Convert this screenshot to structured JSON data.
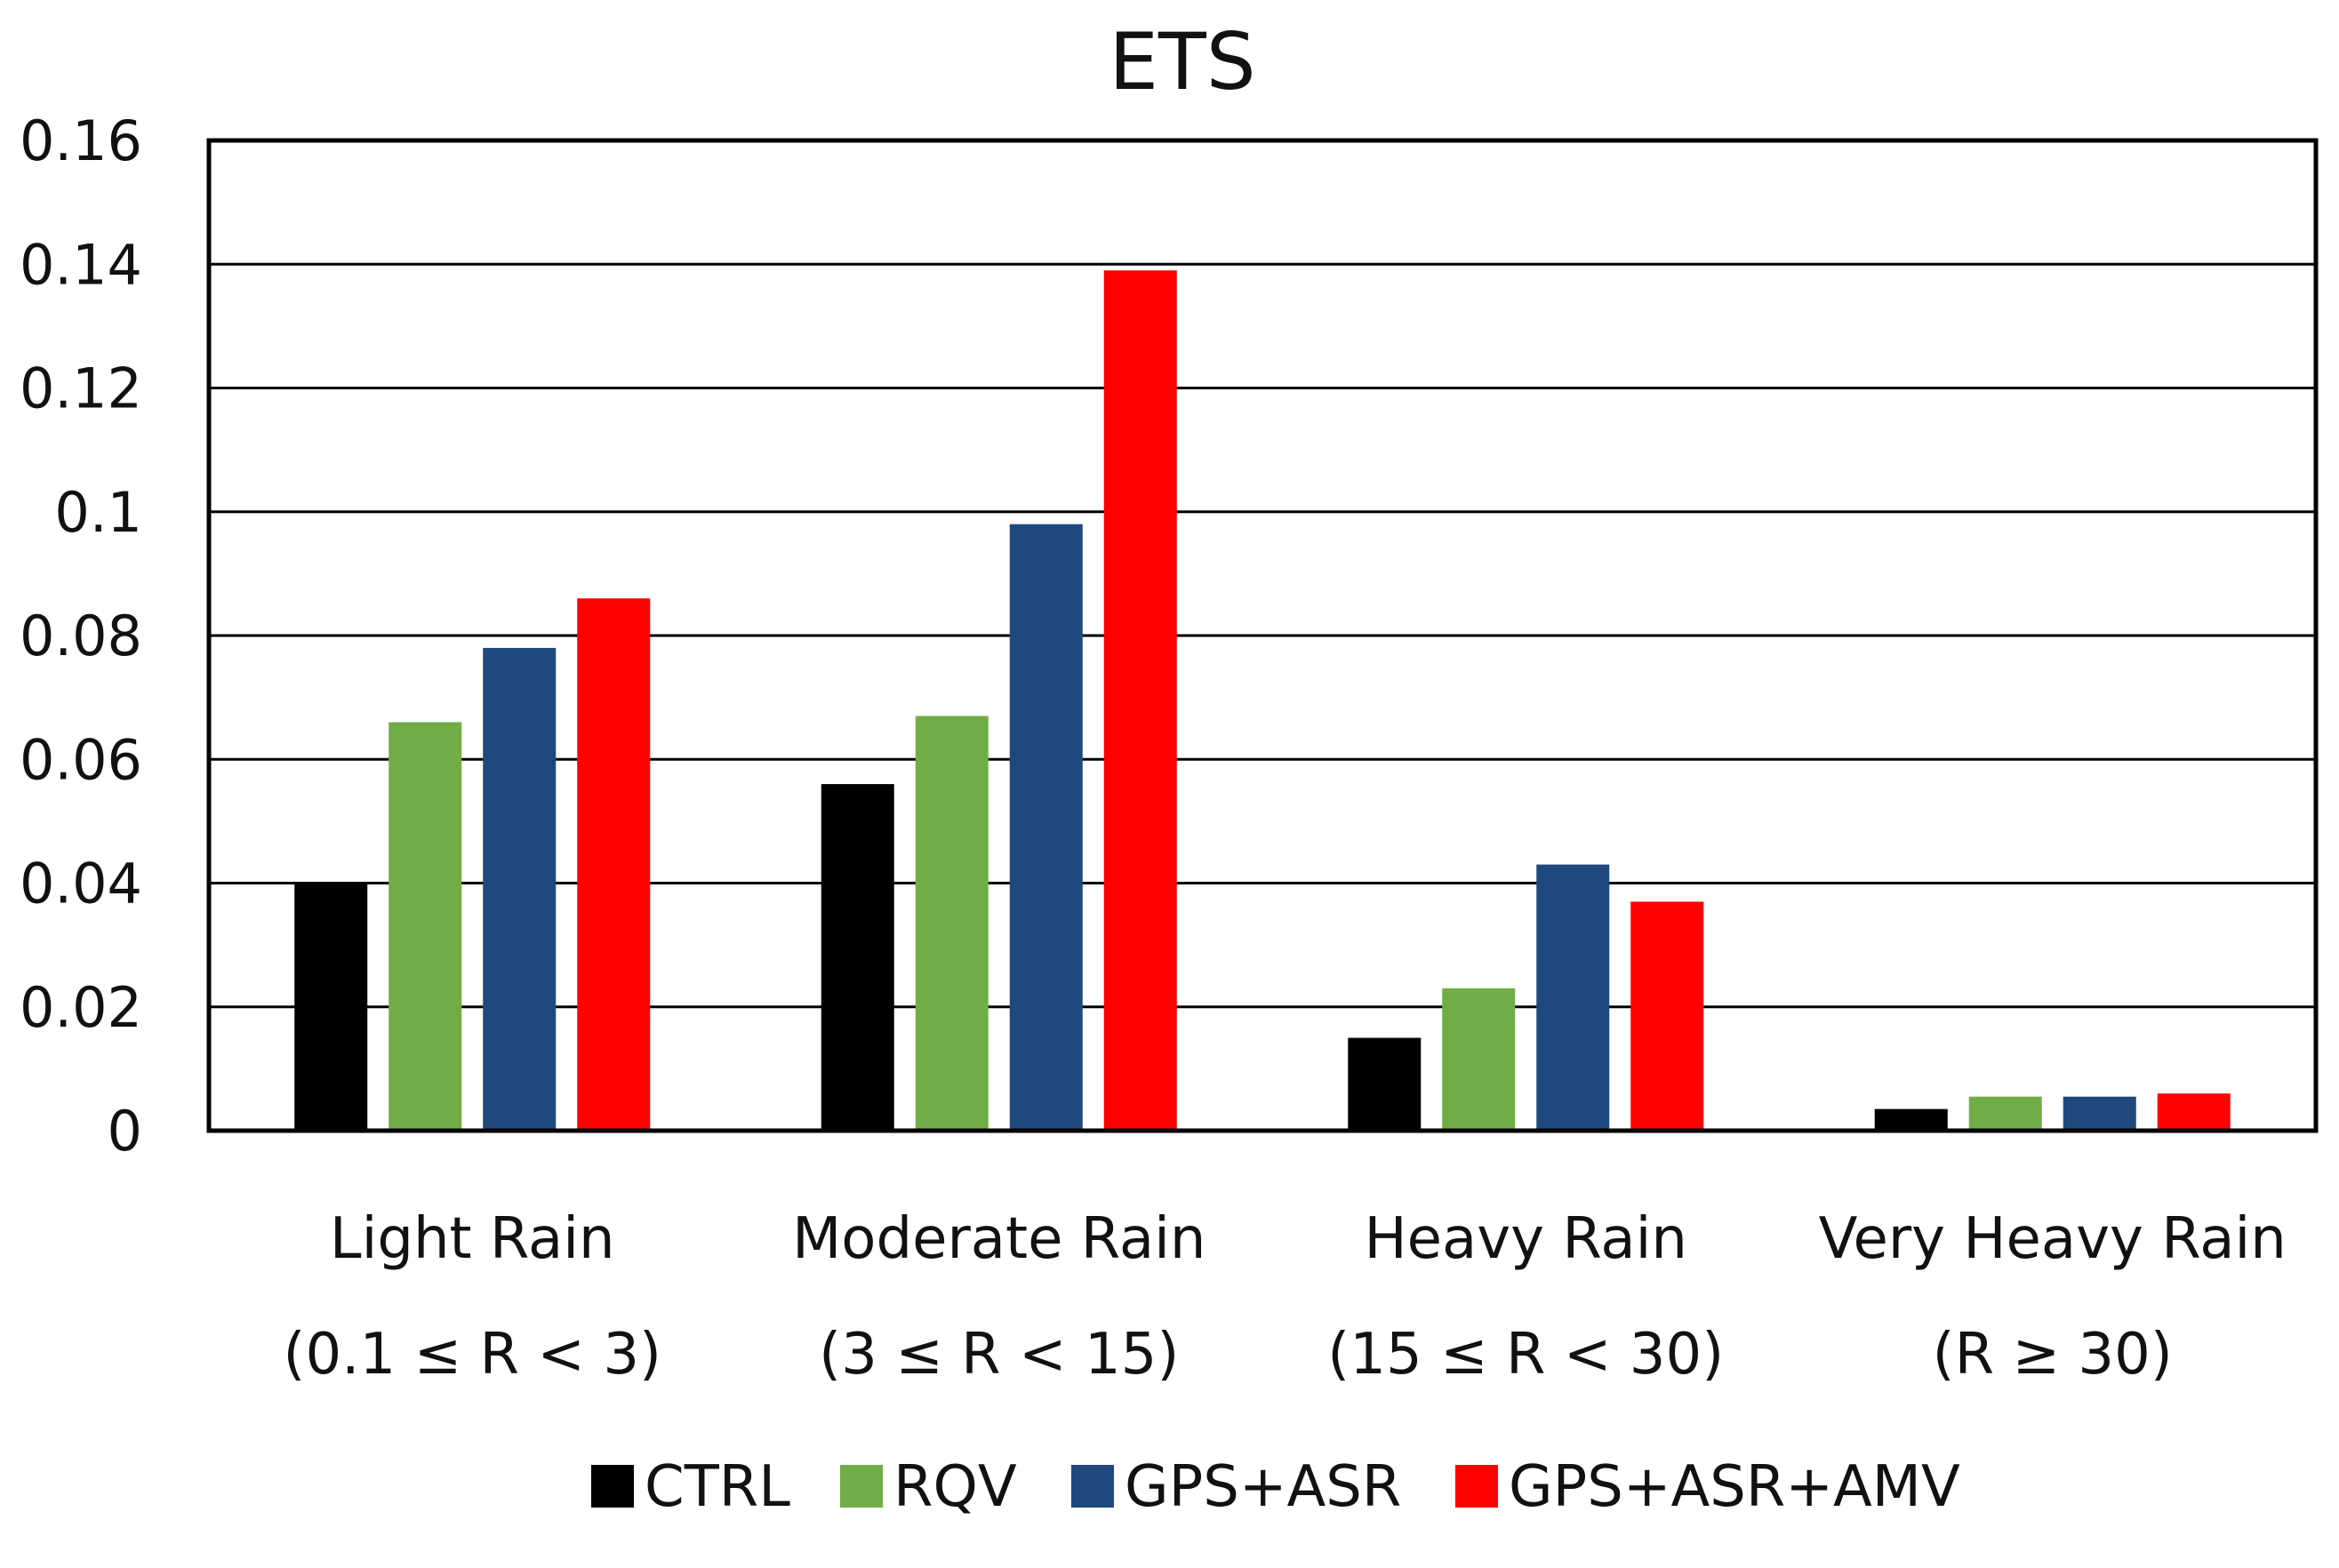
{
  "chart_data": {
    "type": "bar",
    "title": "ETS",
    "xlabel": "",
    "ylabel": "",
    "ylim": [
      0,
      0.16
    ],
    "yticks": [
      "0",
      "0.02",
      "0.04",
      "0.06",
      "0.08",
      "0.1",
      "0.12",
      "0.14",
      "0.16"
    ],
    "grid": true,
    "legend_position": "bottom",
    "categories": [
      {
        "name": "Light Rain",
        "range": "(0.1 ≤ R < 3)"
      },
      {
        "name": "Moderate Rain",
        "range": "(3 ≤ R < 15)"
      },
      {
        "name": "Heavy Rain",
        "range": "(15 ≤ R < 30)"
      },
      {
        "name": "Very Heavy Rain",
        "range": "(R ≥ 30)"
      }
    ],
    "series": [
      {
        "name": "CTRL",
        "color": "#000000",
        "values": [
          0.04,
          0.056,
          0.015,
          0.0035
        ]
      },
      {
        "name": "RQV",
        "color": "#70ad47",
        "values": [
          0.066,
          0.067,
          0.023,
          0.0055
        ]
      },
      {
        "name": "GPS+ASR",
        "color": "#1f497d",
        "values": [
          0.078,
          0.098,
          0.043,
          0.0055
        ]
      },
      {
        "name": "GPS+ASR+AMV",
        "color": "#ff0000",
        "values": [
          0.086,
          0.139,
          0.037,
          0.006
        ]
      }
    ]
  }
}
